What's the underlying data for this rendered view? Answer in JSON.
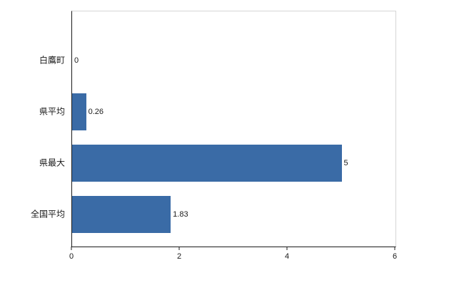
{
  "chart_data": {
    "type": "bar",
    "orientation": "horizontal",
    "title": "",
    "categories": [
      "白鷹町",
      "県平均",
      "県最大",
      "全国平均"
    ],
    "values": [
      0,
      0.26,
      5,
      1.83
    ],
    "value_labels": [
      "0",
      "0.26",
      "5",
      "1.83"
    ],
    "xlim": [
      0,
      6
    ],
    "xticks": [
      0,
      2,
      4,
      6
    ],
    "xtick_labels": [
      "0",
      "2",
      "4",
      "6"
    ],
    "bar_color": "#3a6ba6",
    "axis_color": "#1a1a1a",
    "frame_color": "#d6d6d6",
    "grid": false,
    "legend": null
  }
}
